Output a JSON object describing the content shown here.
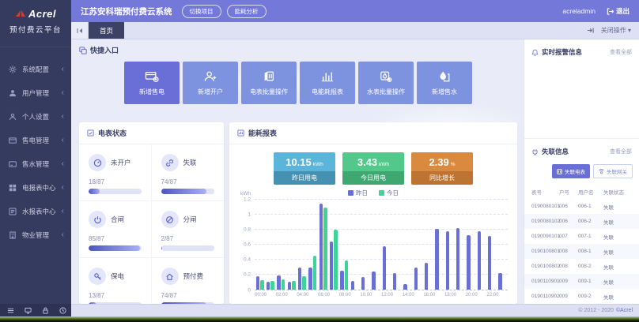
{
  "topbar": {
    "title": "江苏安科瑞预付费云系统",
    "switch_project": "切换项目",
    "energy_analysis": "能耗分析",
    "username": "acreladmin",
    "logout": "退出"
  },
  "sidebar": {
    "brand": "Acrel",
    "platform": "预付费云平台",
    "items": [
      {
        "label": "系统配置",
        "icon": "gear-icon"
      },
      {
        "label": "用户管理",
        "icon": "users-icon"
      },
      {
        "label": "个人设置",
        "icon": "person-icon"
      },
      {
        "label": "售电管理",
        "icon": "electric-sale-card-icon"
      },
      {
        "label": "售水管理",
        "icon": "water-sale-card-icon"
      },
      {
        "label": "电报表中心",
        "icon": "electric-report-grid-icon"
      },
      {
        "label": "水报表中心",
        "icon": "water-report-icon"
      },
      {
        "label": "物业管理",
        "icon": "property-building-icon"
      }
    ]
  },
  "tabbar": {
    "active_tab": "首页",
    "close_menu": "关闭操作"
  },
  "quick_entry": {
    "title": "快捷入口",
    "buttons": [
      {
        "label": "新增售电",
        "icon": "card-plus-icon"
      },
      {
        "label": "新增开户",
        "icon": "user-plus-icon"
      },
      {
        "label": "电表批量操作",
        "icon": "electric-meter-icon"
      },
      {
        "label": "电能耗报表",
        "icon": "bar-chart-icon"
      },
      {
        "label": "水表批量操作",
        "icon": "water-meter-gear-icon"
      },
      {
        "label": "新增售水",
        "icon": "water-drop-icon"
      }
    ]
  },
  "meter_status": {
    "title": "电表状态",
    "total": 87,
    "items": [
      {
        "label": "未开户",
        "value": "18/87",
        "count": 18,
        "icon": "meter-dial-icon"
      },
      {
        "label": "失联",
        "value": "74/87",
        "count": 74,
        "icon": "broken-link-icon"
      },
      {
        "label": "合闸",
        "value": "85/87",
        "count": 85,
        "icon": "power-on-icon"
      },
      {
        "label": "分闸",
        "value": "2/87",
        "count": 2,
        "icon": "power-off-icon"
      },
      {
        "label": "保电",
        "value": "13/87",
        "count": 13,
        "icon": "key-icon"
      },
      {
        "label": "预付费",
        "value": "74/87",
        "count": 74,
        "icon": "home-icon"
      }
    ]
  },
  "energy_report": {
    "title": "能耗报表",
    "stats": [
      {
        "value": "10.15",
        "unit": "kWh",
        "label": "昨日用电",
        "color": "#5bb4da",
        "footer_color": "#4691b2"
      },
      {
        "value": "3.43",
        "unit": "kWh",
        "label": "今日用电",
        "color": "#52c98b",
        "footer_color": "#3fa871"
      },
      {
        "value": "2.39",
        "unit": "%",
        "label": "同比增长",
        "color": "#d98a3f",
        "footer_color": "#bd7331"
      }
    ]
  },
  "chart_data": {
    "type": "bar",
    "title": "能耗报表",
    "xlabel": "",
    "ylabel": "kWh",
    "ylim": [
      0,
      1.2
    ],
    "yticks": [
      0,
      0.2,
      0.4,
      0.6,
      0.8,
      1,
      1.2
    ],
    "grid": true,
    "legend_position": "top",
    "categories": [
      "00:00",
      "01:00",
      "02:00",
      "03:00",
      "04:00",
      "05:00",
      "06:00",
      "07:00",
      "08:00",
      "09:00",
      "10:00",
      "11:00",
      "12:00",
      "13:00",
      "14:00",
      "15:00",
      "16:00",
      "17:00",
      "18:00",
      "19:00",
      "20:00",
      "21:00",
      "22:00",
      "23:00"
    ],
    "x_tick_every": 2,
    "series": [
      {
        "name": "昨日",
        "color": "#6a6fd3",
        "values": [
          0.18,
          0.11,
          0.19,
          0.11,
          0.3,
          0.3,
          1.15,
          0.64,
          0.25,
          0.12,
          0.17,
          0.24,
          0.58,
          0.22,
          0.07,
          0.3,
          0.36,
          0.81,
          0.78,
          0.82,
          0.73,
          0.78,
          0.72,
          0.22
        ]
      },
      {
        "name": "今日",
        "color": "#3fd495",
        "values": [
          0.13,
          0.12,
          0.14,
          0.12,
          0.18,
          0.45,
          1.1,
          0.8,
          0.39,
          0,
          0,
          0,
          0,
          0,
          0,
          0,
          0,
          0,
          0,
          0,
          0,
          0,
          0,
          0
        ]
      }
    ]
  },
  "alarm_panel": {
    "title": "实时报警信息",
    "view_all": "查看全部"
  },
  "offline_panel": {
    "title": "失联信息",
    "view_all": "查看全部",
    "tabs": [
      {
        "label": "失联电表",
        "active": true
      },
      {
        "label": "失联网关",
        "active": false
      }
    ],
    "table": {
      "headers": [
        "表号",
        "户号",
        "用户名",
        "失联状态"
      ],
      "rows": [
        [
          "0190080101",
          "006",
          "006-1",
          "失联"
        ],
        [
          "0190080102",
          "006",
          "006-2",
          "失联"
        ],
        [
          "0190090101",
          "007",
          "007-1",
          "失联"
        ],
        [
          "0190100801",
          "008",
          "008-1",
          "失联"
        ],
        [
          "0190100802",
          "008",
          "008-2",
          "失联"
        ],
        [
          "0190110901",
          "009",
          "009-1",
          "失联"
        ],
        [
          "0190110902",
          "009",
          "009-2",
          "失联"
        ]
      ]
    }
  },
  "footer": {
    "copyright": "© 2012 - 2020",
    "brand": "©Acrel"
  }
}
